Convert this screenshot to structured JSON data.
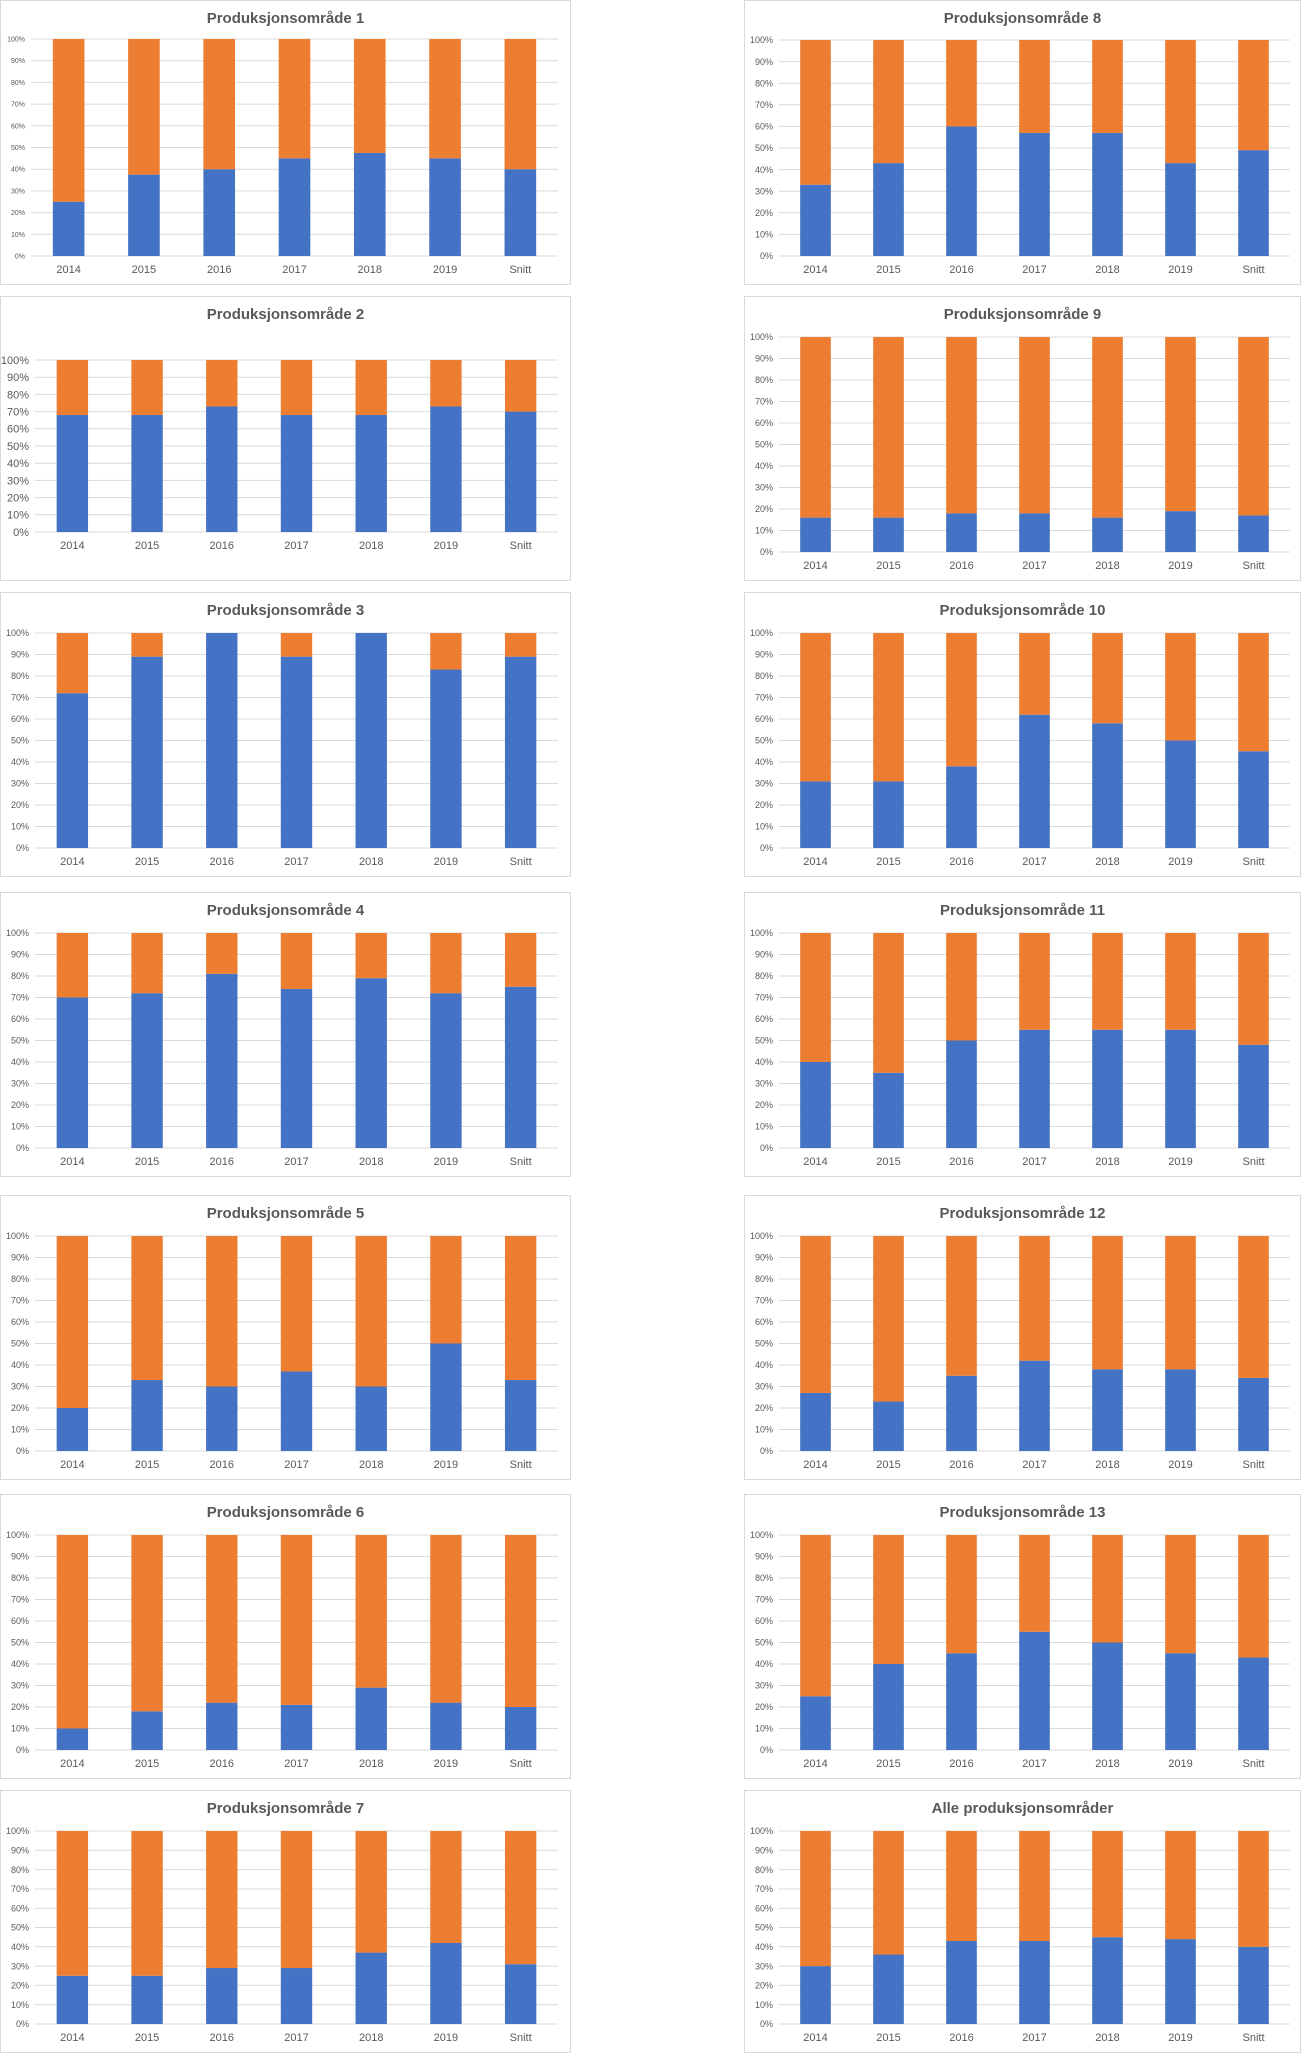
{
  "colors": {
    "blue": "#4472c4",
    "orange": "#ed7d31"
  },
  "chart_data": [
    {
      "type": "bar",
      "stacked": "percent",
      "title": "Produksjonsområde 1",
      "categories": [
        "2014",
        "2015",
        "2016",
        "2017",
        "2018",
        "2019",
        "Snitt"
      ],
      "series": [
        {
          "color": "#4472c4",
          "values": [
            25,
            37.5,
            40,
            45,
            47.5,
            45,
            40
          ]
        },
        {
          "color": "#ed7d31",
          "values": [
            75,
            62.5,
            60,
            55,
            52.5,
            55,
            60
          ]
        }
      ],
      "yticks": [
        "0%",
        "10%",
        "20%",
        "30%",
        "40%",
        "50%",
        "60%",
        "70%",
        "80%",
        "90%",
        "100%"
      ],
      "ylim": [
        0,
        100
      ],
      "grid": true
    },
    {
      "type": "bar",
      "stacked": "percent",
      "title": "Produksjonsområde 2",
      "categories": [
        "2014",
        "2015",
        "2016",
        "2017",
        "2018",
        "2019",
        "Snitt"
      ],
      "series": [
        {
          "color": "#4472c4",
          "values": [
            68,
            68,
            73,
            68,
            68,
            73,
            70
          ]
        },
        {
          "color": "#ed7d31",
          "values": [
            32,
            32,
            27,
            32,
            32,
            27,
            30
          ]
        }
      ],
      "yticks": [
        "0%",
        "10%",
        "20%",
        "30%",
        "40%",
        "50%",
        "60%",
        "70%",
        "80%",
        "90%",
        "100%"
      ],
      "ylim": [
        0,
        100
      ],
      "grid": true
    },
    {
      "type": "bar",
      "stacked": "percent",
      "title": "Produksjonsområde 3",
      "categories": [
        "2014",
        "2015",
        "2016",
        "2017",
        "2018",
        "2019",
        "Snitt"
      ],
      "series": [
        {
          "color": "#4472c4",
          "values": [
            72,
            89,
            100,
            89,
            100,
            83,
            89
          ]
        },
        {
          "color": "#ed7d31",
          "values": [
            28,
            11,
            0,
            11,
            0,
            17,
            11
          ]
        }
      ],
      "yticks": [
        "0%",
        "10%",
        "20%",
        "30%",
        "40%",
        "50%",
        "60%",
        "70%",
        "80%",
        "90%",
        "100%"
      ],
      "ylim": [
        0,
        100
      ],
      "grid": true
    },
    {
      "type": "bar",
      "stacked": "percent",
      "title": "Produksjonsområde 4",
      "categories": [
        "2014",
        "2015",
        "2016",
        "2017",
        "2018",
        "2019",
        "Snitt"
      ],
      "series": [
        {
          "color": "#4472c4",
          "values": [
            70,
            72,
            81,
            74,
            79,
            72,
            75
          ]
        },
        {
          "color": "#ed7d31",
          "values": [
            30,
            28,
            19,
            26,
            21,
            28,
            25
          ]
        }
      ],
      "yticks": [
        "0%",
        "10%",
        "20%",
        "30%",
        "40%",
        "50%",
        "60%",
        "70%",
        "80%",
        "90%",
        "100%"
      ],
      "ylim": [
        0,
        100
      ],
      "grid": true
    },
    {
      "type": "bar",
      "stacked": "percent",
      "title": "Produksjonsområde 5",
      "categories": [
        "2014",
        "2015",
        "2016",
        "2017",
        "2018",
        "2019",
        "Snitt"
      ],
      "series": [
        {
          "color": "#4472c4",
          "values": [
            20,
            33,
            30,
            37,
            30,
            50,
            33
          ]
        },
        {
          "color": "#ed7d31",
          "values": [
            80,
            67,
            70,
            63,
            70,
            50,
            67
          ]
        }
      ],
      "yticks": [
        "0%",
        "10%",
        "20%",
        "30%",
        "40%",
        "50%",
        "60%",
        "70%",
        "80%",
        "90%",
        "100%"
      ],
      "ylim": [
        0,
        100
      ],
      "grid": true
    },
    {
      "type": "bar",
      "stacked": "percent",
      "title": "Produksjonsområde 6",
      "categories": [
        "2014",
        "2015",
        "2016",
        "2017",
        "2018",
        "2019",
        "Snitt"
      ],
      "series": [
        {
          "color": "#4472c4",
          "values": [
            10,
            18,
            22,
            21,
            29,
            22,
            20
          ]
        },
        {
          "color": "#ed7d31",
          "values": [
            90,
            82,
            78,
            79,
            71,
            78,
            80
          ]
        }
      ],
      "yticks": [
        "0%",
        "10%",
        "20%",
        "30%",
        "40%",
        "50%",
        "60%",
        "70%",
        "80%",
        "90%",
        "100%"
      ],
      "ylim": [
        0,
        100
      ],
      "grid": true
    },
    {
      "type": "bar",
      "stacked": "percent",
      "title": "Produksjonsområde 7",
      "categories": [
        "2014",
        "2015",
        "2016",
        "2017",
        "2018",
        "2019",
        "Snitt"
      ],
      "series": [
        {
          "color": "#4472c4",
          "values": [
            25,
            25,
            29,
            29,
            37,
            42,
            31
          ]
        },
        {
          "color": "#ed7d31",
          "values": [
            75,
            75,
            71,
            71,
            63,
            58,
            69
          ]
        }
      ],
      "yticks": [
        "0%",
        "10%",
        "20%",
        "30%",
        "40%",
        "50%",
        "60%",
        "70%",
        "80%",
        "90%",
        "100%"
      ],
      "ylim": [
        0,
        100
      ],
      "grid": true
    },
    {
      "type": "bar",
      "stacked": "percent",
      "title": "Produksjonsområde 8",
      "categories": [
        "2014",
        "2015",
        "2016",
        "2017",
        "2018",
        "2019",
        "Snitt"
      ],
      "series": [
        {
          "color": "#4472c4",
          "values": [
            33,
            43,
            60,
            57,
            57,
            43,
            49
          ]
        },
        {
          "color": "#ed7d31",
          "values": [
            67,
            57,
            40,
            43,
            43,
            57,
            51
          ]
        }
      ],
      "yticks": [
        "0%",
        "10%",
        "20%",
        "30%",
        "40%",
        "50%",
        "60%",
        "70%",
        "80%",
        "90%",
        "100%"
      ],
      "ylim": [
        0,
        100
      ],
      "grid": true
    },
    {
      "type": "bar",
      "stacked": "percent",
      "title": "Produksjonsområde 9",
      "categories": [
        "2014",
        "2015",
        "2016",
        "2017",
        "2018",
        "2019",
        "Snitt"
      ],
      "series": [
        {
          "color": "#4472c4",
          "values": [
            16,
            16,
            18,
            18,
            16,
            19,
            17
          ]
        },
        {
          "color": "#ed7d31",
          "values": [
            84,
            84,
            82,
            82,
            84,
            81,
            83
          ]
        }
      ],
      "yticks": [
        "0%",
        "10%",
        "20%",
        "30%",
        "40%",
        "50%",
        "60%",
        "70%",
        "80%",
        "90%",
        "100%"
      ],
      "ylim": [
        0,
        100
      ],
      "grid": true
    },
    {
      "type": "bar",
      "stacked": "percent",
      "title": "Produksjonsområde 10",
      "categories": [
        "2014",
        "2015",
        "2016",
        "2017",
        "2018",
        "2019",
        "Snitt"
      ],
      "series": [
        {
          "color": "#4472c4",
          "values": [
            31,
            31,
            38,
            62,
            58,
            50,
            45
          ]
        },
        {
          "color": "#ed7d31",
          "values": [
            69,
            69,
            62,
            38,
            42,
            50,
            55
          ]
        }
      ],
      "yticks": [
        "0%",
        "10%",
        "20%",
        "30%",
        "40%",
        "50%",
        "60%",
        "70%",
        "80%",
        "90%",
        "100%"
      ],
      "ylim": [
        0,
        100
      ],
      "grid": true
    },
    {
      "type": "bar",
      "stacked": "percent",
      "title": "Produksjonsområde 11",
      "categories": [
        "2014",
        "2015",
        "2016",
        "2017",
        "2018",
        "2019",
        "Snitt"
      ],
      "series": [
        {
          "color": "#4472c4",
          "values": [
            40,
            35,
            50,
            55,
            55,
            55,
            48
          ]
        },
        {
          "color": "#ed7d31",
          "values": [
            60,
            65,
            50,
            45,
            45,
            45,
            52
          ]
        }
      ],
      "yticks": [
        "0%",
        "10%",
        "20%",
        "30%",
        "40%",
        "50%",
        "60%",
        "70%",
        "80%",
        "90%",
        "100%"
      ],
      "ylim": [
        0,
        100
      ],
      "grid": true
    },
    {
      "type": "bar",
      "stacked": "percent",
      "title": "Produksjonsområde 12",
      "categories": [
        "2014",
        "2015",
        "2016",
        "2017",
        "2018",
        "2019",
        "Snitt"
      ],
      "series": [
        {
          "color": "#4472c4",
          "values": [
            27,
            23,
            35,
            42,
            38,
            38,
            34
          ]
        },
        {
          "color": "#ed7d31",
          "values": [
            73,
            77,
            65,
            58,
            62,
            62,
            66
          ]
        }
      ],
      "yticks": [
        "0%",
        "10%",
        "20%",
        "30%",
        "40%",
        "50%",
        "60%",
        "70%",
        "80%",
        "90%",
        "100%"
      ],
      "ylim": [
        0,
        100
      ],
      "grid": true
    },
    {
      "type": "bar",
      "stacked": "percent",
      "title": "Produksjonsområde 13",
      "categories": [
        "2014",
        "2015",
        "2016",
        "2017",
        "2018",
        "2019",
        "Snitt"
      ],
      "series": [
        {
          "color": "#4472c4",
          "values": [
            25,
            40,
            45,
            55,
            50,
            45,
            43
          ]
        },
        {
          "color": "#ed7d31",
          "values": [
            75,
            60,
            55,
            45,
            50,
            55,
            57
          ]
        }
      ],
      "yticks": [
        "0%",
        "10%",
        "20%",
        "30%",
        "40%",
        "50%",
        "60%",
        "70%",
        "80%",
        "90%",
        "100%"
      ],
      "ylim": [
        0,
        100
      ],
      "grid": true
    },
    {
      "type": "bar",
      "stacked": "percent",
      "title": "Alle produksjonsområder",
      "categories": [
        "2014",
        "2015",
        "2016",
        "2017",
        "2018",
        "2019",
        "Snitt"
      ],
      "series": [
        {
          "color": "#4472c4",
          "values": [
            30,
            36,
            43,
            43,
            45,
            44,
            40
          ]
        },
        {
          "color": "#ed7d31",
          "values": [
            70,
            64,
            57,
            57,
            55,
            56,
            60
          ]
        }
      ],
      "yticks": [
        "0%",
        "10%",
        "20%",
        "30%",
        "40%",
        "50%",
        "60%",
        "70%",
        "80%",
        "90%",
        "100%"
      ],
      "ylim": [
        0,
        100
      ],
      "grid": true
    }
  ]
}
